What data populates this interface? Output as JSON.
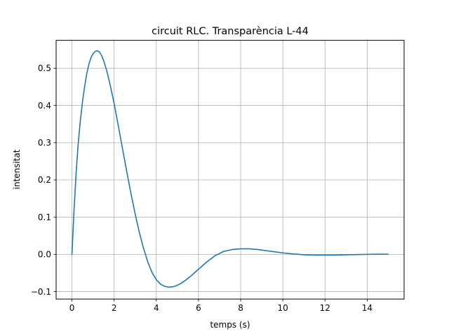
{
  "chart_data": {
    "type": "line",
    "title": "circuit RLC. Transparència L-44",
    "xlabel": "temps (s)",
    "ylabel": "intensitat",
    "xlim": [
      -0.75,
      15.75
    ],
    "ylim": [
      -0.12,
      0.575
    ],
    "grid": true,
    "x_ticks": [
      0,
      2,
      4,
      6,
      8,
      10,
      12,
      14
    ],
    "y_ticks": [
      -0.1,
      0.0,
      0.1,
      0.2,
      0.3,
      0.4,
      0.5
    ],
    "x_tick_labels": [
      "0",
      "2",
      "4",
      "6",
      "8",
      "10",
      "12",
      "14"
    ],
    "y_tick_labels": [
      "−0.1",
      "0.0",
      "0.1",
      "0.2",
      "0.3",
      "0.4",
      "0.5"
    ],
    "series": [
      {
        "color": "#1f77b4",
        "x": [
          0,
          0.1,
          0.2,
          0.3,
          0.4,
          0.5,
          0.6,
          0.7,
          0.8,
          0.9,
          1.0,
          1.1,
          1.2,
          1.3,
          1.4,
          1.5,
          1.6,
          1.7,
          1.8,
          1.9,
          2.0,
          2.2,
          2.4,
          2.6,
          2.8,
          3.0,
          3.2,
          3.4,
          3.6,
          3.8,
          4.0,
          4.2,
          4.4,
          4.6,
          4.8,
          5.0,
          5.2,
          5.4,
          5.6,
          5.8,
          6.0,
          6.4,
          6.8,
          7.2,
          7.6,
          8.0,
          8.4,
          8.8,
          9.2,
          9.6,
          10.0,
          10.5,
          11.0,
          11.5,
          12.0,
          12.5,
          13.0,
          13.5,
          14.0,
          14.5,
          15.0
        ],
        "y": [
          0.0,
          0.12,
          0.22,
          0.3,
          0.36,
          0.41,
          0.45,
          0.485,
          0.51,
          0.528,
          0.539,
          0.545,
          0.547,
          0.544,
          0.535,
          0.521,
          0.503,
          0.482,
          0.458,
          0.432,
          0.405,
          0.345,
          0.283,
          0.222,
          0.163,
          0.108,
          0.058,
          0.015,
          -0.021,
          -0.049,
          -0.068,
          -0.08,
          -0.086,
          -0.088,
          -0.087,
          -0.083,
          -0.077,
          -0.069,
          -0.06,
          -0.05,
          -0.04,
          -0.02,
          -0.003,
          0.008,
          0.013,
          0.015,
          0.015,
          0.013,
          0.01,
          0.007,
          0.004,
          0.001,
          -0.001,
          -0.002,
          -0.002,
          -0.002,
          -0.001,
          -0.0005,
          0.0,
          0.0003,
          0.0005
        ]
      }
    ]
  }
}
